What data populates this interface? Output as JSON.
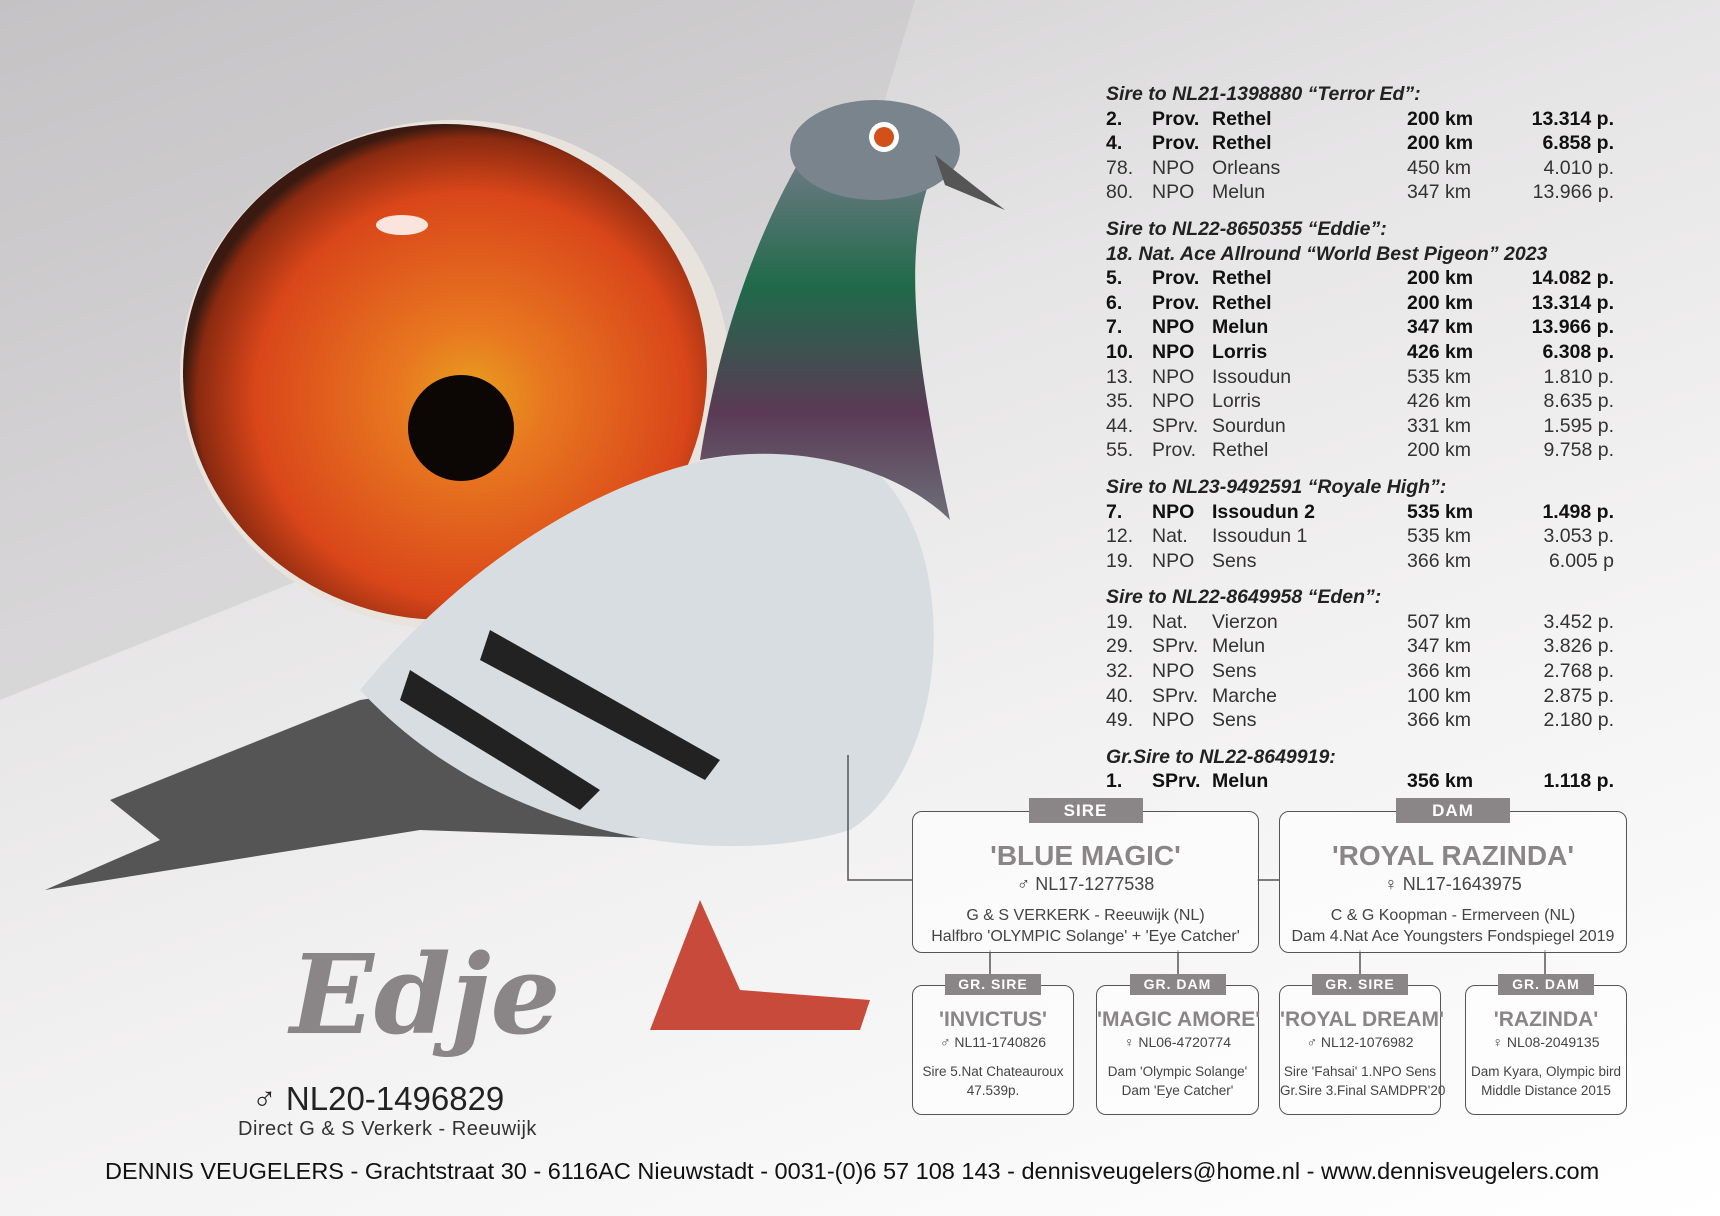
{
  "results": [
    {
      "heading": "Sire to NL21-1398880 “Terror Ed”:",
      "rows": [
        {
          "cells": [
            "2.",
            "Prov.",
            "Rethel",
            "200 km",
            "13.314 p."
          ],
          "bold": true
        },
        {
          "cells": [
            "4.",
            "Prov.",
            "Rethel",
            "200 km",
            "6.858 p."
          ],
          "bold": true
        },
        {
          "cells": [
            "78.",
            "NPO",
            "Orleans",
            "450 km",
            "4.010 p."
          ],
          "bold": false
        },
        {
          "cells": [
            "80.",
            "NPO",
            "Melun",
            "347 km",
            "13.966 p."
          ],
          "bold": false
        }
      ]
    },
    {
      "heading": "Sire to NL22-8650355 “Eddie”:",
      "subheading": "18. Nat. Ace Allround “World Best Pigeon” 2023",
      "rows": [
        {
          "cells": [
            "5.",
            "Prov.",
            "Rethel",
            "200 km",
            "14.082 p."
          ],
          "bold": true
        },
        {
          "cells": [
            "6.",
            "Prov.",
            "Rethel",
            "200 km",
            "13.314 p."
          ],
          "bold": true
        },
        {
          "cells": [
            "7.",
            "NPO",
            "Melun",
            "347 km",
            "13.966 p."
          ],
          "bold": true
        },
        {
          "cells": [
            "10.",
            "NPO",
            "Lorris",
            "426 km",
            "6.308 p."
          ],
          "bold": true
        },
        {
          "cells": [
            "13.",
            "NPO",
            "Issoudun",
            "535 km",
            "1.810 p."
          ],
          "bold": false
        },
        {
          "cells": [
            "35.",
            "NPO",
            "Lorris",
            "426 km",
            "8.635 p."
          ],
          "bold": false
        },
        {
          "cells": [
            "44.",
            "SPrv.",
            "Sourdun",
            "331 km",
            "1.595 p."
          ],
          "bold": false
        },
        {
          "cells": [
            "55.",
            "Prov.",
            "Rethel",
            "200 km",
            "9.758 p."
          ],
          "bold": false
        }
      ]
    },
    {
      "heading": "Sire to NL23-9492591 “Royale High”:",
      "rows": [
        {
          "cells": [
            "7.",
            "NPO",
            "Issoudun 2",
            "535 km",
            "1.498 p."
          ],
          "bold": true
        },
        {
          "cells": [
            "12.",
            "Nat.",
            "Issoudun 1",
            "535 km",
            "3.053 p."
          ],
          "bold": false
        },
        {
          "cells": [
            "19.",
            "NPO",
            "Sens",
            "366 km",
            "6.005 p"
          ],
          "bold": false
        }
      ]
    },
    {
      "heading": "Sire to NL22-8649958 “Eden”:",
      "rows": [
        {
          "cells": [
            "19.",
            "Nat.",
            "Vierzon",
            "507 km",
            "3.452 p."
          ],
          "bold": false
        },
        {
          "cells": [
            "29.",
            "SPrv.",
            "Melun",
            "347 km",
            "3.826 p."
          ],
          "bold": false
        },
        {
          "cells": [
            "32.",
            "NPO",
            "Sens",
            "366 km",
            "2.768 p."
          ],
          "bold": false
        },
        {
          "cells": [
            "40.",
            "SPrv.",
            "Marche",
            "100 km",
            "2.875 p."
          ],
          "bold": false
        },
        {
          "cells": [
            "49.",
            "NPO",
            "Sens",
            "366 km",
            "2.180 p."
          ],
          "bold": false
        }
      ]
    },
    {
      "heading": "Gr.Sire to NL22-8649919:",
      "rows": [
        {
          "cells": [
            "1.",
            "SPrv.",
            "Melun",
            "356 km",
            "1.118 p."
          ],
          "bold": true
        }
      ]
    }
  ],
  "pigeon": {
    "name": "Edje",
    "ring": "♂ NL20-1496829",
    "origin": "Direct G & S Verkerk - Reeuwijk"
  },
  "pedigree": [
    {
      "tag": "SIRE",
      "name": "'BLUE MAGIC'",
      "ring": "♂ NL17-1277538",
      "lines": [
        "G & S VERKERK - Reeuwijk (NL)",
        "Halfbro 'OLYMPIC Solange' + 'Eye Catcher'"
      ]
    },
    {
      "tag": "DAM",
      "name": "'ROYAL RAZINDA'",
      "ring": "♀ NL17-1643975",
      "lines": [
        "C & G Koopman - Ermerveen (NL)",
        "Dam 4.Nat Ace Youngsters Fondspiegel 2019"
      ]
    },
    {
      "tag": "GR. SIRE",
      "name": "'INVICTUS'",
      "ring": "♂ NL11-1740826",
      "lines": [
        "Sire 5.Nat Chateauroux",
        "47.539p."
      ]
    },
    {
      "tag": "GR. DAM",
      "name": "'MAGIC AMORE'",
      "ring": "♀ NL06-4720774",
      "lines": [
        "Dam 'Olympic Solange'",
        "Dam 'Eye Catcher'"
      ]
    },
    {
      "tag": "GR. SIRE",
      "name": "'ROYAL DREAM'",
      "ring": "♂ NL12-1076982",
      "lines": [
        "Sire 'Fahsai' 1.NPO Sens",
        "Gr.Sire 3.Final SAMDPR'20"
      ]
    },
    {
      "tag": "GR. DAM",
      "name": "'RAZINDA'",
      "ring": "♀ NL08-2049135",
      "lines": [
        "Dam Kyara, Olympic bird",
        "Middle Distance 2015"
      ]
    }
  ],
  "footer": "DENNIS VEUGELERS - Grachtstraat 30 - 6116AC Nieuwstadt - 0031-(0)6 57 108 143 - dennisveugelers@home.nl - www.dennisveugelers.com"
}
